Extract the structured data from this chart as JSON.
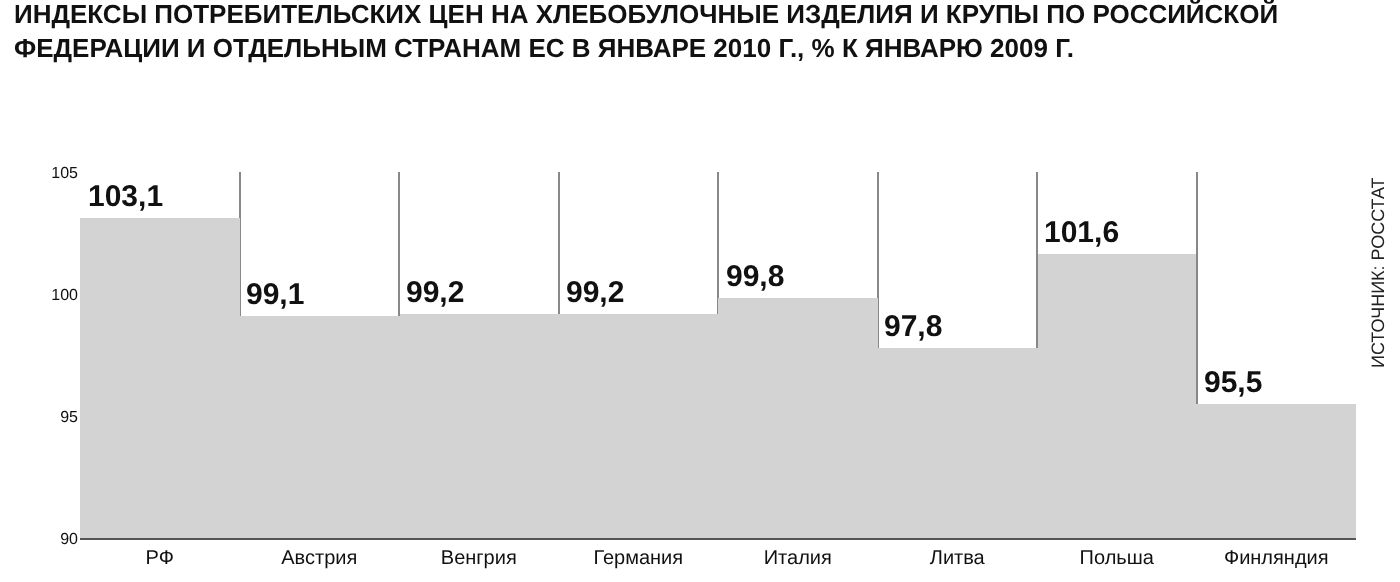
{
  "chart_data": {
    "type": "bar",
    "title": "ИНДЕКСЫ ПОТРЕБИТЕЛЬСКИХ ЦЕН НА ХЛЕБОБУЛОЧНЫЕ ИЗДЕЛИЯ И КРУПЫ ПО РОССИЙСКОЙ ФЕДЕРАЦИИ И ОТДЕЛЬНЫМ СТРАНАМ ЕС В ЯНВАРЕ 2010 Г., % К ЯНВАРЮ 2009 Г.",
    "categories": [
      "РФ",
      "Австрия",
      "Венгрия",
      "Германия",
      "Италия",
      "Литва",
      "Польша",
      "Финляндия"
    ],
    "values": [
      103.1,
      99.1,
      99.2,
      99.2,
      99.8,
      97.8,
      101.6,
      95.5
    ],
    "color": "#d3d3d4",
    "value_labels": [
      "103,1",
      "99,1",
      "99,2",
      "99,2",
      "99,8",
      "97,8",
      "101,6",
      "95,5"
    ],
    "ylim": [
      90,
      105
    ],
    "yticks": [
      90,
      95,
      100,
      105
    ],
    "grid": "x",
    "legend": false,
    "annotations": [
      "ИСТОЧНИК: РОССТАТ"
    ]
  }
}
